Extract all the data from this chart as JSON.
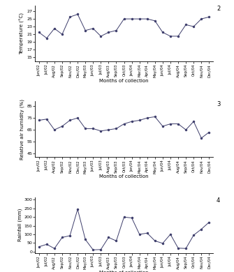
{
  "months": [
    "Jun/02",
    "Jul/02",
    "Aug/02",
    "Sep/02",
    "Nov/02",
    "Dec/02",
    "May/03",
    "Jun/03",
    "Jul/03",
    "Aug/03",
    "Sep/03",
    "Oct/03",
    "Jan/04",
    "Mar/04",
    "Apr/04",
    "May/04",
    "Jun/04",
    "Jul/04",
    "Aug/04",
    "Sep/04",
    "Oct/04",
    "Nov/04",
    "Dec/04"
  ],
  "temperature": [
    21.5,
    20.0,
    22.5,
    21.0,
    25.5,
    26.2,
    22.0,
    22.5,
    20.5,
    21.5,
    22.0,
    25.0,
    25.0,
    25.0,
    25.0,
    24.5,
    21.5,
    20.5,
    20.5,
    23.5,
    23.0,
    25.0,
    25.5
  ],
  "humidity": [
    73,
    74,
    65,
    68,
    73,
    75,
    66,
    66,
    64,
    65,
    66,
    70,
    72,
    73,
    75,
    76,
    68,
    70,
    70,
    65,
    72,
    58,
    63
  ],
  "rainfall": [
    28,
    42,
    18,
    82,
    92,
    245,
    70,
    10,
    12,
    82,
    62,
    200,
    195,
    100,
    107,
    62,
    48,
    100,
    20,
    18,
    95,
    130,
    170
  ],
  "temp_yticks": [
    15,
    17,
    19,
    21,
    23,
    25,
    27
  ],
  "hum_yticks": [
    45,
    55,
    65,
    75,
    85
  ],
  "rain_yticks": [
    0,
    50,
    100,
    150,
    200,
    250,
    300
  ],
  "temp_ylim": [
    14,
    28.5
  ],
  "hum_ylim": [
    42,
    89
  ],
  "rain_ylim": [
    -8,
    315
  ],
  "line_color": "#3d3d6b",
  "marker": "o",
  "markersize": 2.2,
  "linewidth": 0.7,
  "panel_labels": [
    "2",
    "3",
    "4"
  ],
  "xlabel": "Months of collection",
  "ylabel1": "Temperature (°C)",
  "ylabel2": "Relative air humidity (%)",
  "ylabel3": "Rainfall (mm)"
}
